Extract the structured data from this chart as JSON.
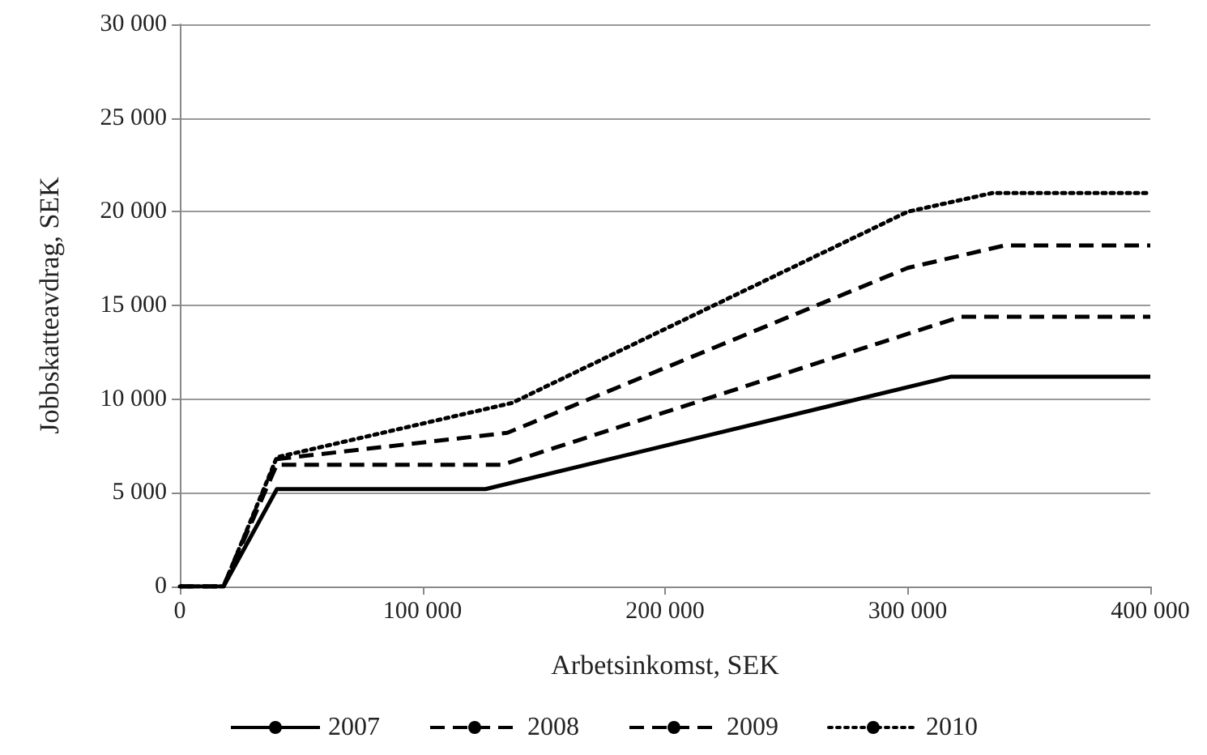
{
  "chart_data": {
    "type": "line",
    "xlabel": "Arbetsinkomst, SEK",
    "ylabel": "Jobbskatteavdrag, SEK",
    "xlim": [
      0,
      400000
    ],
    "ylim": [
      0,
      30000
    ],
    "xticks": [
      {
        "value": 0,
        "label": "0"
      },
      {
        "value": 100000,
        "label": "100 000"
      },
      {
        "value": 200000,
        "label": "200 000"
      },
      {
        "value": 300000,
        "label": "300 000"
      },
      {
        "value": 400000,
        "label": "400 000"
      }
    ],
    "yticks": [
      {
        "value": 0,
        "label": "0"
      },
      {
        "value": 5000,
        "label": "5 000"
      },
      {
        "value": 10000,
        "label": "10 000"
      },
      {
        "value": 15000,
        "label": "15 000"
      },
      {
        "value": 20000,
        "label": "20 000"
      },
      {
        "value": 25000,
        "label": "25 000"
      },
      {
        "value": 30000,
        "label": "30 000"
      }
    ],
    "grid": "y",
    "legend": "bottom",
    "marker": "none",
    "series": [
      {
        "name": "2007",
        "color": "#000000",
        "line_style": "solid",
        "x": [
          0,
          18000,
          40000,
          126000,
          318000,
          400000
        ],
        "values": [
          0,
          0,
          5200,
          5200,
          11200,
          11200
        ]
      },
      {
        "name": "2008",
        "color": "#000000",
        "line_style": "dashed",
        "x": [
          0,
          18000,
          40000,
          133000,
          322000,
          400000
        ],
        "values": [
          0,
          0,
          6500,
          6500,
          14400,
          14400
        ]
      },
      {
        "name": "2009",
        "color": "#000000",
        "line_style": "dashed",
        "x": [
          0,
          18000,
          40000,
          135000,
          300000,
          340000,
          400000
        ],
        "values": [
          0,
          0,
          6800,
          8200,
          17000,
          18200,
          18200
        ]
      },
      {
        "name": "2010",
        "color": "#000000",
        "line_style": "dotted",
        "x": [
          0,
          18000,
          40000,
          137000,
          300000,
          335000,
          400000
        ],
        "values": [
          0,
          0,
          6900,
          9800,
          20000,
          21000,
          21000
        ]
      }
    ]
  }
}
